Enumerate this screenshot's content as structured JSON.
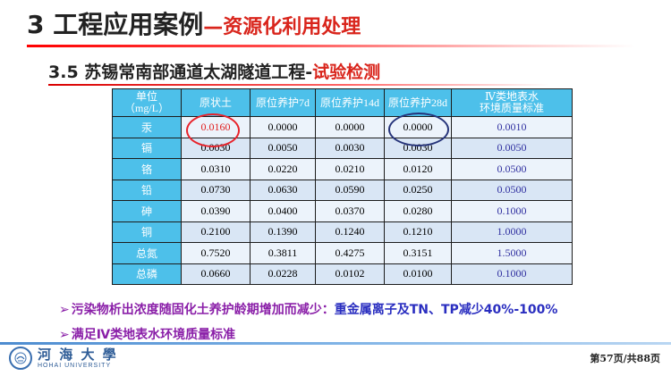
{
  "header": {
    "title_main": "3 工程应用案例",
    "title_accent": "—资源化利用处理",
    "subtitle_main": "3.5  苏锡常南部通道太湖隧道工程-",
    "subtitle_accent": "试验检测"
  },
  "table": {
    "unit_header_line1": "单位",
    "unit_header_line2": "（mg/L）",
    "columns": [
      "原状土",
      "原位养护7d",
      "原位养护14d",
      "原位养护28d"
    ],
    "std_header_line1": "Ⅳ类地表水",
    "std_header_line2": "环境质量标准",
    "rows": [
      {
        "label": "汞",
        "values": [
          "0.0160",
          "0.0000",
          "0.0000",
          "0.0000"
        ],
        "std": "0.0010"
      },
      {
        "label": "镉",
        "values": [
          "0.0030",
          "0.0050",
          "0.0030",
          "0.0030"
        ],
        "std": "0.0050"
      },
      {
        "label": "铬",
        "values": [
          "0.0310",
          "0.0220",
          "0.0210",
          "0.0120"
        ],
        "std": "0.0500"
      },
      {
        "label": "铅",
        "values": [
          "0.0730",
          "0.0630",
          "0.0590",
          "0.0250"
        ],
        "std": "0.0500"
      },
      {
        "label": "砷",
        "values": [
          "0.0390",
          "0.0400",
          "0.0370",
          "0.0280"
        ],
        "std": "0.1000"
      },
      {
        "label": "铜",
        "values": [
          "0.2100",
          "0.1390",
          "0.1240",
          "0.1210"
        ],
        "std": "1.0000"
      },
      {
        "label": "总氮",
        "values": [
          "0.7520",
          "0.3811",
          "0.4275",
          "0.3151"
        ],
        "std": "1.5000"
      },
      {
        "label": "总磷",
        "values": [
          "0.0660",
          "0.0228",
          "0.0102",
          "0.0100"
        ],
        "std": "0.1000"
      }
    ]
  },
  "bullets": {
    "b1_text": "污染物析出浓度随固化土养护龄期增加而减少：",
    "b1_emphasis": "重金属离子及TN、TP减少40%-100%",
    "b2_text": "满足Ⅳ类地表水环境质量标准",
    "arrow_glyph": "➢"
  },
  "footer": {
    "logo_cn": "河 海 大 學",
    "logo_en": "HOHAI UNIVERSITY",
    "page": "第57页/共88页"
  },
  "colors": {
    "accent_red": "#d9251c",
    "table_header": "#4dc0ea",
    "bullet_purple": "#8a1fa8",
    "bullet_blue": "#2a2ec0"
  }
}
